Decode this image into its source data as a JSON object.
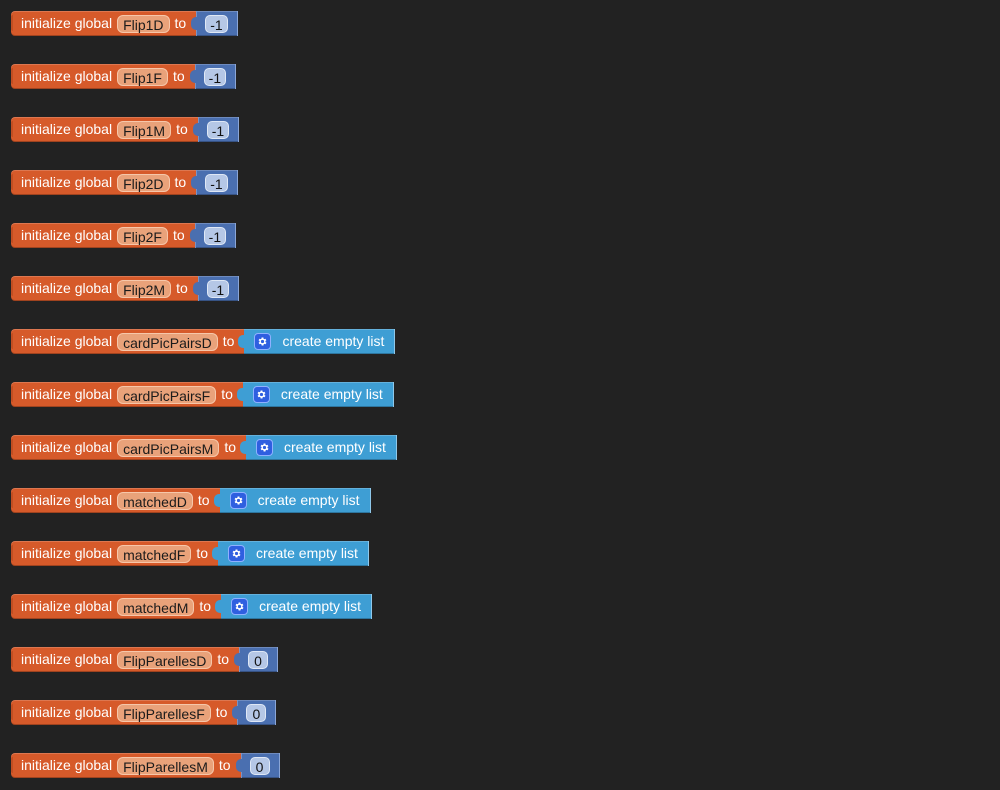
{
  "blocks": [
    {
      "prefix": "initialize global",
      "variable": "Flip1D",
      "connector": "to",
      "value_type": "number",
      "value": "-1"
    },
    {
      "prefix": "initialize global",
      "variable": "Flip1F",
      "connector": "to",
      "value_type": "number",
      "value": "-1"
    },
    {
      "prefix": "initialize global",
      "variable": "Flip1M",
      "connector": "to",
      "value_type": "number",
      "value": "-1"
    },
    {
      "prefix": "initialize global",
      "variable": "Flip2D",
      "connector": "to",
      "value_type": "number",
      "value": "-1"
    },
    {
      "prefix": "initialize global",
      "variable": "Flip2F",
      "connector": "to",
      "value_type": "number",
      "value": "-1"
    },
    {
      "prefix": "initialize global",
      "variable": "Flip2M",
      "connector": "to",
      "value_type": "number",
      "value": "-1"
    },
    {
      "prefix": "initialize global",
      "variable": "cardPicPairsD",
      "connector": "to",
      "value_type": "list",
      "value": "create empty list"
    },
    {
      "prefix": "initialize global",
      "variable": "cardPicPairsF",
      "connector": "to",
      "value_type": "list",
      "value": "create empty list"
    },
    {
      "prefix": "initialize global",
      "variable": "cardPicPairsM",
      "connector": "to",
      "value_type": "list",
      "value": "create empty list"
    },
    {
      "prefix": "initialize global",
      "variable": "matchedD",
      "connector": "to",
      "value_type": "list",
      "value": "create empty list"
    },
    {
      "prefix": "initialize global",
      "variable": "matchedF",
      "connector": "to",
      "value_type": "list",
      "value": "create empty list"
    },
    {
      "prefix": "initialize global",
      "variable": "matchedM",
      "connector": "to",
      "value_type": "list",
      "value": "create empty list"
    },
    {
      "prefix": "initialize global",
      "variable": "FlipParellesD",
      "connector": "to",
      "value_type": "number",
      "value": "0"
    },
    {
      "prefix": "initialize global",
      "variable": "FlipParellesF",
      "connector": "to",
      "value_type": "number",
      "value": "0"
    },
    {
      "prefix": "initialize global",
      "variable": "FlipParellesM",
      "connector": "to",
      "value_type": "number",
      "value": "0"
    }
  ],
  "icons": {
    "list_mutator": "gear-icon"
  },
  "colors": {
    "background": "#222222",
    "variable_block": "#d65a2a",
    "math_block": "#4a6fb0",
    "list_block": "#3e9ed4"
  }
}
